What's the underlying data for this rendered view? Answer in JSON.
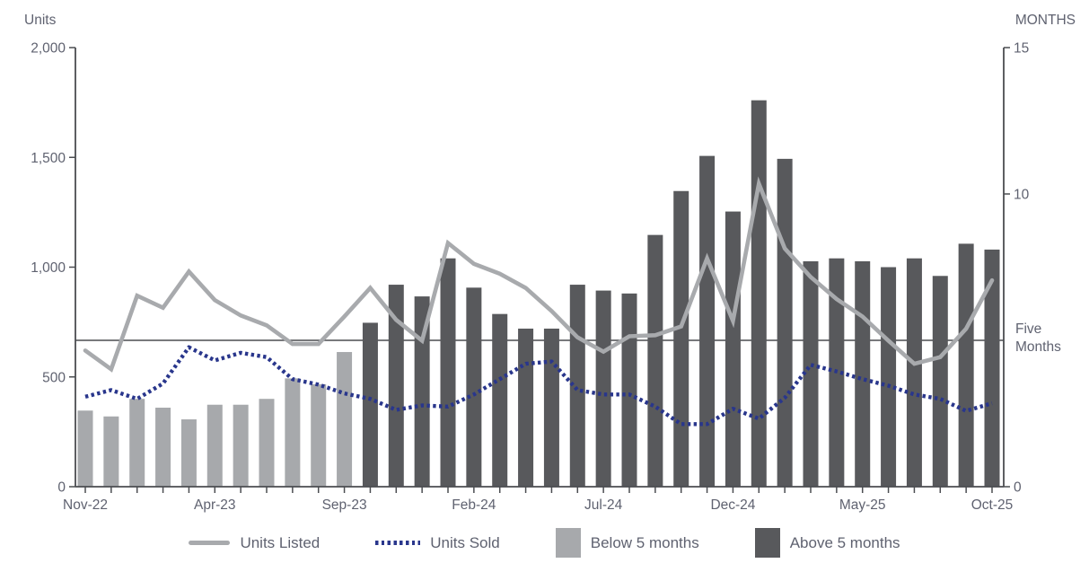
{
  "legend": {
    "units_listed": "Units Listed",
    "units_sold": "Units Sold",
    "below": "Below 5 months",
    "above": "Above 5 months"
  },
  "colors": {
    "listed_line": "#a8aaad",
    "sold_line": "#29368c",
    "below_bar": "#a7a9ac",
    "above_bar": "#58595c",
    "axis": "#4b4d51",
    "reference_line": "#4b4d51",
    "text": "#5f6270"
  },
  "chart_data": {
    "type": "combo",
    "title": "",
    "x": [
      "Nov-22",
      "Dec-22",
      "Jan-23",
      "Feb-23",
      "Mar-23",
      "Apr-23",
      "May-23",
      "Jun-23",
      "Jul-23",
      "Aug-23",
      "Sep-23",
      "Oct-23",
      "Nov-23",
      "Dec-23",
      "Jan-24",
      "Feb-24",
      "Mar-24",
      "Apr-24",
      "May-24",
      "Jun-24",
      "Jul-24",
      "Aug-24",
      "Sep-24",
      "Oct-24",
      "Nov-24",
      "Dec-24",
      "Jan-25",
      "Feb-25",
      "Mar-25",
      "Apr-25",
      "May-25",
      "Jun-25",
      "Jul-25",
      "Aug-25",
      "Sep-25",
      "Oct-25"
    ],
    "x_labeled_tick_indices": [
      0,
      5,
      10,
      15,
      20,
      25,
      30,
      35
    ],
    "left_axis": {
      "title": "Units",
      "range": [
        0,
        2000
      ],
      "ticks": [
        {
          "value": 0,
          "label": "0"
        },
        {
          "value": 500,
          "label": "500"
        },
        {
          "value": 1000,
          "label": "1,000"
        },
        {
          "value": 1500,
          "label": "1,500"
        },
        {
          "value": 2000,
          "label": "2,000"
        }
      ]
    },
    "right_axis": {
      "title": "MONTHS",
      "range": [
        0,
        15
      ],
      "ticks": [
        {
          "value": 0,
          "label": "0"
        },
        {
          "value": 10,
          "label": "10"
        },
        {
          "value": 15,
          "label": "15"
        }
      ]
    },
    "reference_line": {
      "axis": "right",
      "value_months": 5,
      "label_lines": [
        "Five",
        "Months"
      ]
    },
    "series": [
      {
        "name": "Units Listed",
        "type": "line",
        "style": "solid",
        "axis": "left",
        "values": [
          620,
          535,
          870,
          815,
          980,
          850,
          780,
          735,
          650,
          650,
          775,
          905,
          760,
          665,
          1110,
          1015,
          970,
          905,
          800,
          680,
          615,
          685,
          690,
          730,
          1040,
          755,
          1380,
          1085,
          955,
          855,
          775,
          665,
          560,
          590,
          720,
          940
        ]
      },
      {
        "name": "Units Sold",
        "type": "line",
        "style": "dotted",
        "axis": "left",
        "values": [
          410,
          440,
          400,
          470,
          635,
          575,
          610,
          590,
          490,
          465,
          425,
          400,
          350,
          370,
          365,
          420,
          490,
          560,
          570,
          440,
          420,
          420,
          365,
          285,
          285,
          355,
          310,
          405,
          555,
          525,
          490,
          460,
          420,
          400,
          345,
          380
        ]
      },
      {
        "name": "Months of inventory",
        "type": "bar",
        "axis": "right",
        "threshold_months": 5,
        "below_name": "Below 5 months",
        "above_name": "Above 5 months",
        "values_months": [
          2.6,
          2.4,
          3.0,
          2.7,
          2.3,
          2.8,
          2.8,
          3.0,
          3.7,
          3.5,
          4.6,
          5.6,
          6.9,
          6.5,
          7.8,
          6.8,
          5.9,
          5.4,
          5.4,
          6.9,
          6.7,
          6.6,
          8.6,
          10.1,
          11.3,
          9.4,
          13.2,
          11.2,
          7.7,
          7.8,
          7.7,
          7.5,
          7.8,
          7.2,
          8.3,
          8.1
        ]
      }
    ],
    "grid": false,
    "legend_position": "bottom"
  }
}
